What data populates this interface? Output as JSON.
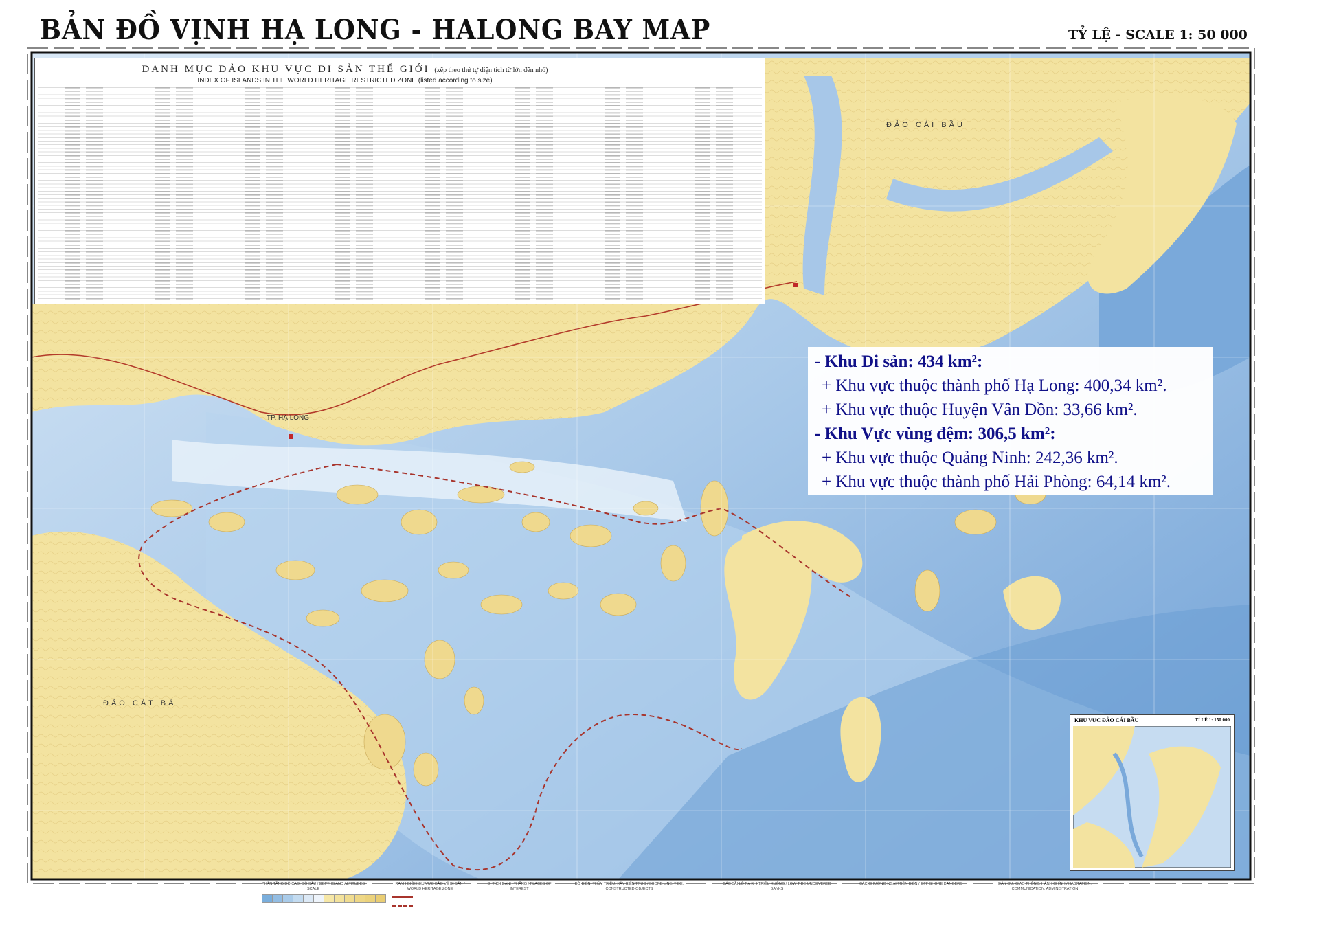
{
  "header": {
    "title": "BẢN ĐỒ VỊNH HẠ LONG - HALONG BAY MAP",
    "scale": "TỶ LỆ - SCALE 1: 50 000"
  },
  "index": {
    "title_vi": "DANH MỤC ĐẢO KHU VỰC DI SẢN THẾ GIỚI",
    "title_vi_note": "(xếp theo thứ tự diện tích từ lớn đến nhỏ)",
    "title_en": "INDEX OF ISLANDS IN THE WORLD HERITAGE RESTRICTED ZONE (listed according to size)"
  },
  "info_box": {
    "lines": [
      {
        "text": "- Khu Di sản: 434 km²:",
        "bold": true
      },
      {
        "text": "+ Khu vực thuộc thành phố Hạ Long: 400,34 km².",
        "bold": false
      },
      {
        "text": "+ Khu vực thuộc Huyện Vân Đồn: 33,66 km².",
        "bold": false
      },
      {
        "text": "- Khu Vực vùng đệm: 306,5 km²:",
        "bold": true
      },
      {
        "text": "+ Khu vực thuộc Quảng Ninh: 242,36 km².",
        "bold": false
      },
      {
        "text": "+ Khu vực thuộc thành phố Hải Phòng: 64,14 km².",
        "bold": false
      }
    ],
    "text_color": "#101088"
  },
  "places": {
    "cai_bau": "ĐẢO CÁI BẦU",
    "cat_ba": "ĐẢO CÁT BÀ",
    "ha_long": "TP. HẠ LONG"
  },
  "inset": {
    "title": "KHU VỰC ĐẢO CÁI BẦU",
    "scale": "TỈ LỆ 1: 150 000"
  },
  "legend": {
    "sections": [
      "PHÂN TẦNG ĐỘ CAO, ĐỘ SÂU / DEPTHS AND ALTITUDES SCALE",
      "RANH GIỚI KHU VỰC BẢO VỆ DI SẢN / WORLD HERITAGE ZONE",
      "DI TÍCH DANH THẮNG / PLACES OF INTEREST",
      "BỜ BIỂN, THỦY TRIỀU, XÂY KIẾN TRÚC / SHORE LINE, TIDE, CONSTRUCTED OBJECTS",
      "CÁC BÃI LỘ RA KHI TRIỀU XUỐNG / LOW TIDE UNCOVERED BANKS",
      "CÁC CHƯỚNG NGẠI TRÊN BIỂN / OFF SHORE DANGERS",
      "DÂN CƯ, GIAO THÔNG, HÀNH CHÍNH / HABITATION, COMMUNICATION, ADMINISTRATION"
    ],
    "depth_colors": [
      "#7aaedc",
      "#93bde3",
      "#a9cbe9",
      "#c3dbf0",
      "#dce9f6",
      "#eef4fb",
      "#f6e7a6",
      "#f3e29c",
      "#f0dc90",
      "#eed786",
      "#ebd27c",
      "#e9cd73"
    ]
  },
  "colors": {
    "land": "#f3e3a0",
    "shallow_water": "#dbe9f6",
    "mid_water": "#a8c8e8",
    "deep_water": "#6f9fd4",
    "boundary": "#a8342c"
  }
}
